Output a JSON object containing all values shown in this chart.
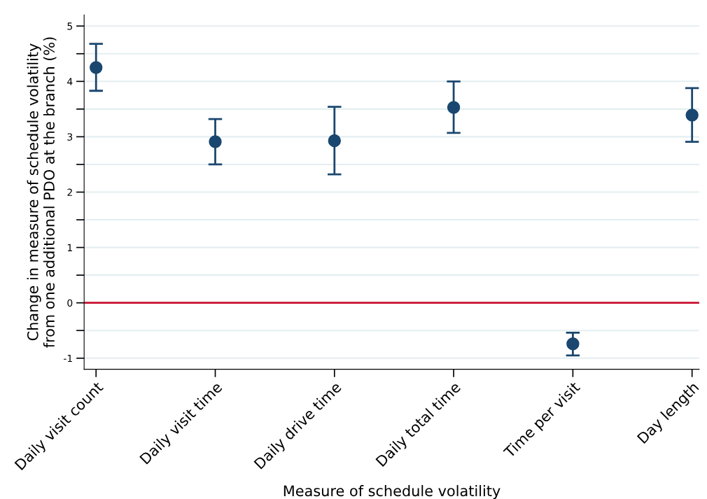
{
  "chart_data": {
    "type": "scatter",
    "xlabel": "Measure of schedule volatility",
    "ylabel": "Change in measure of schedule volatility\nfrom one additional PDO at the branch (%)",
    "categories": [
      "Daily visit count",
      "Daily visit time",
      "Daily drive time",
      "Daily total time",
      "Time per visit",
      "Day length"
    ],
    "series": [
      {
        "color": "#1a476f",
        "values": [
          4.25,
          2.91,
          2.93,
          3.53,
          -0.74,
          3.39
        ],
        "errors": [
          [
            3.83,
            4.68
          ],
          [
            2.5,
            3.32
          ],
          [
            2.32,
            3.54
          ],
          [
            3.07,
            4.0
          ],
          [
            -0.95,
            -0.54
          ],
          [
            2.91,
            3.88
          ]
        ]
      }
    ],
    "marker": "circle",
    "ylim": [
      -1.2,
      5.2
    ],
    "yticks": [
      -1,
      {
        "value": -0.5,
        "label": null
      },
      0,
      {
        "value": 0.5,
        "label": null
      },
      1,
      {
        "value": 1.5,
        "label": null
      },
      2,
      {
        "value": 2.5,
        "label": null
      },
      3,
      {
        "value": 3.5,
        "label": null
      },
      4,
      {
        "value": 4.5,
        "label": null
      },
      5
    ],
    "grid": "y",
    "ref_lines": [
      {
        "axis": "y",
        "value": 0,
        "color": "#c8102e",
        "line_style": "solid"
      }
    ]
  }
}
